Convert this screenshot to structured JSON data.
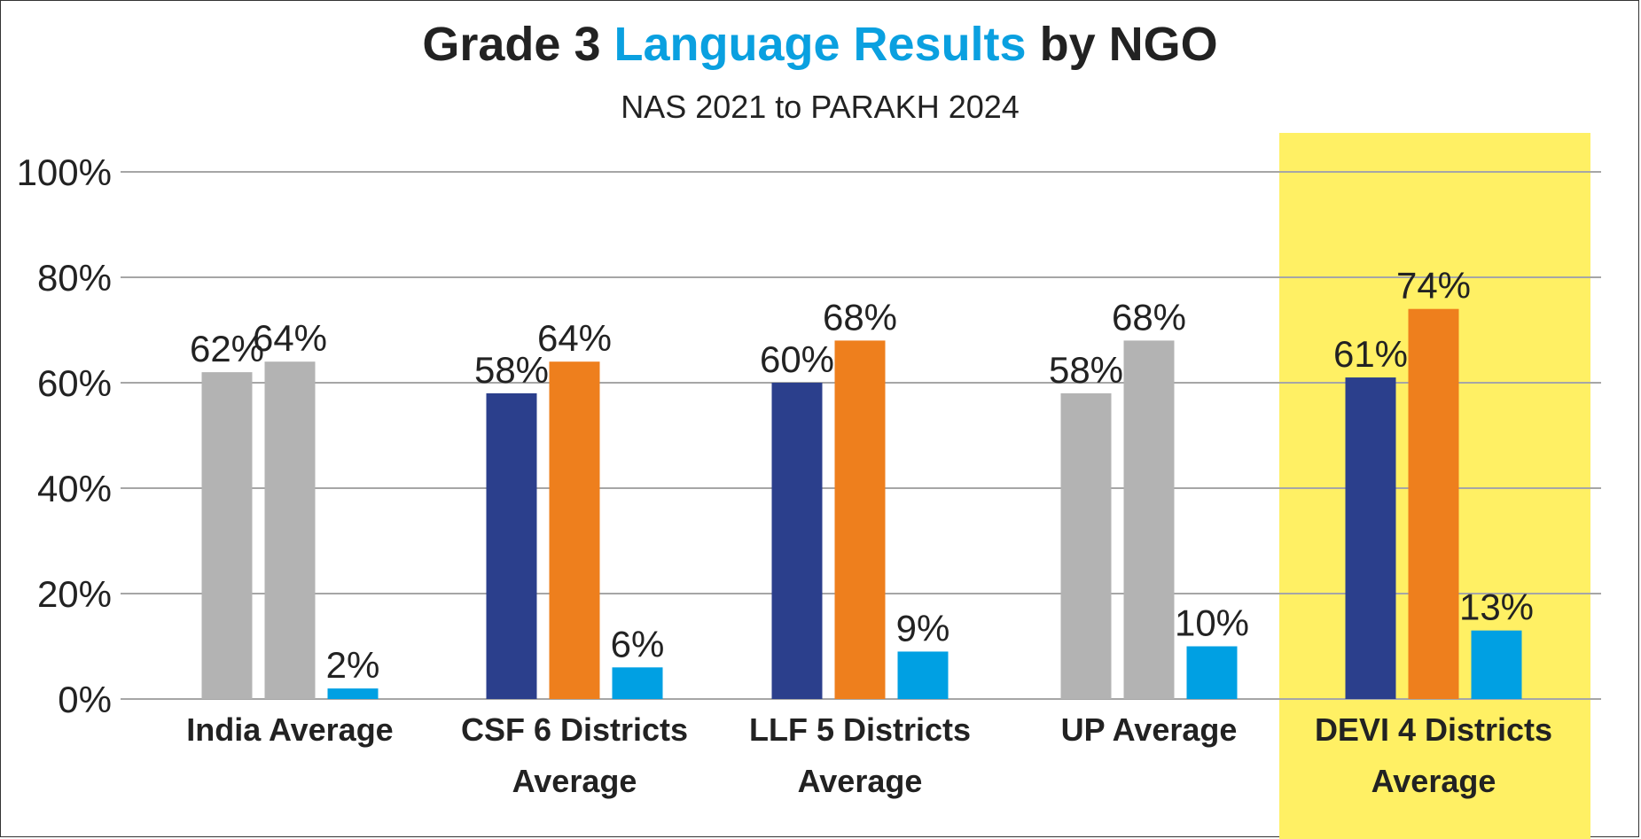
{
  "chart_data": {
    "type": "bar",
    "title": {
      "part1": "Grade 3 ",
      "part2": "Language Results",
      "part3": " by NGO"
    },
    "subtitle": "NAS 2021 to PARAKH 2024",
    "ylim": [
      0,
      100
    ],
    "yticks": [
      "0%",
      "20%",
      "40%",
      "60%",
      "80%",
      "100%"
    ],
    "grid": true,
    "categories": [
      {
        "lines": [
          "India Average"
        ],
        "values": [
          62,
          64,
          2
        ],
        "colors": [
          "#b3b3b3",
          "#b3b3b3",
          "#00a0e3"
        ],
        "labels": [
          "62%",
          "64%",
          "2%"
        ]
      },
      {
        "lines": [
          "CSF 6 Districts",
          "Average"
        ],
        "values": [
          58,
          64,
          6
        ],
        "colors": [
          "#2b3f8c",
          "#ee7f1d",
          "#00a0e3"
        ],
        "labels": [
          "58%",
          "64%",
          "6%"
        ]
      },
      {
        "lines": [
          "LLF 5 Districts",
          "Average"
        ],
        "values": [
          60,
          68,
          9
        ],
        "colors": [
          "#2b3f8c",
          "#ee7f1d",
          "#00a0e3"
        ],
        "labels": [
          "60%",
          "68%",
          "9%"
        ]
      },
      {
        "lines": [
          "UP Average"
        ],
        "values": [
          58,
          68,
          10
        ],
        "colors": [
          "#b3b3b3",
          "#b3b3b3",
          "#00a0e3"
        ],
        "labels": [
          "58%",
          "68%",
          "10%"
        ]
      },
      {
        "lines": [
          "DEVI 4 Districts",
          "Average"
        ],
        "values": [
          61,
          74,
          13
        ],
        "colors": [
          "#2b3f8c",
          "#ee7f1d",
          "#00a0e3"
        ],
        "labels": [
          "61%",
          "74%",
          "13%"
        ],
        "highlighted": true
      }
    ],
    "colors": {
      "highlight": "#fff064",
      "accent": "#0aa0e0",
      "grid": "#a6a6a6"
    }
  }
}
